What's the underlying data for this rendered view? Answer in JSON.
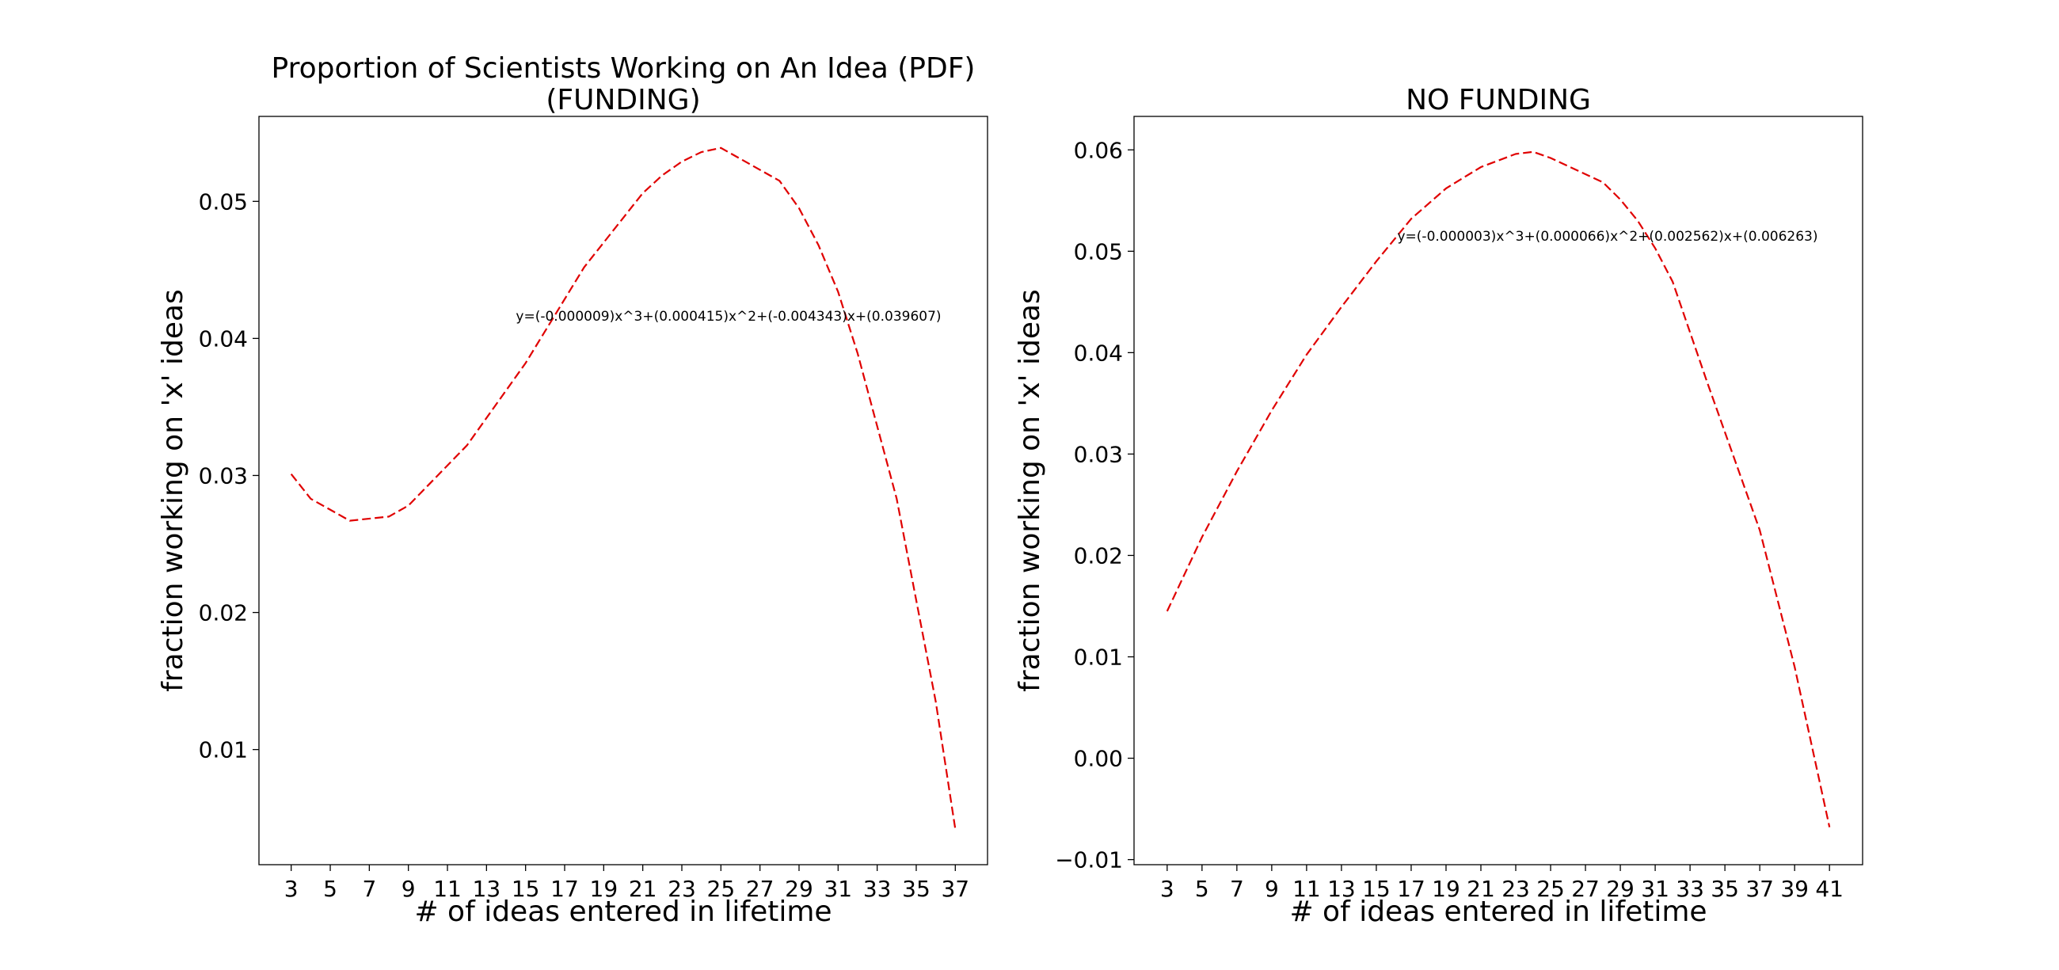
{
  "chart_data": [
    {
      "type": "line",
      "title": "Proportion of Scientists Working on An Idea (PDF)\n(FUNDING)",
      "xlabel": "# of ideas entered in lifetime",
      "ylabel": "fraction working on 'x' ideas",
      "annotation": "y=(-0.000009)x^3+(0.000415)x^2+(-0.004343)x+(0.039607)",
      "color": "#e00000",
      "xlim": [
        1.35,
        38.65
      ],
      "ylim": [
        0.0016,
        0.0562
      ],
      "xticks": [
        3,
        5,
        7,
        9,
        11,
        13,
        15,
        17,
        19,
        21,
        23,
        25,
        27,
        29,
        31,
        33,
        35,
        37
      ],
      "yticks": [
        0.01,
        0.02,
        0.03,
        0.04,
        0.05
      ],
      "ytick_labels": [
        "0.01",
        "0.02",
        "0.03",
        "0.04",
        "0.05"
      ],
      "grid": false,
      "x": [
        3,
        4,
        6,
        8,
        9,
        12,
        15,
        18,
        21,
        22,
        23,
        24,
        25,
        28,
        29,
        30,
        31,
        32,
        34,
        36,
        37
      ],
      "y": [
        0.0301,
        0.0283,
        0.0267,
        0.027,
        0.0278,
        0.0322,
        0.0382,
        0.0452,
        0.0506,
        0.0519,
        0.0529,
        0.0536,
        0.0539,
        0.0515,
        0.0495,
        0.0468,
        0.0434,
        0.0389,
        0.0283,
        0.0135,
        0.0042
      ]
    },
    {
      "type": "line",
      "title": "NO FUNDING",
      "xlabel": "# of ideas entered in lifetime",
      "ylabel": "fraction working on 'x' ideas",
      "annotation": "y=(-0.000003)x^3+(0.000066)x^2+(0.002562)x+(0.006263)",
      "color": "#e00000",
      "xlim": [
        1.1,
        42.9
      ],
      "ylim": [
        -0.0105,
        0.0633
      ],
      "xticks": [
        3,
        5,
        7,
        9,
        11,
        13,
        15,
        17,
        19,
        21,
        23,
        25,
        27,
        29,
        31,
        33,
        35,
        37,
        39,
        41
      ],
      "yticks": [
        -0.01,
        0.0,
        0.01,
        0.02,
        0.03,
        0.04,
        0.05,
        0.06
      ],
      "ytick_labels": [
        "−0.01",
        "0.00",
        "0.01",
        "0.02",
        "0.03",
        "0.04",
        "0.05",
        "0.06"
      ],
      "grid": false,
      "x": [
        3,
        5,
        7,
        9,
        11,
        13,
        15,
        17,
        19,
        21,
        23,
        24,
        25,
        28,
        29,
        30,
        31,
        32,
        34,
        37,
        39,
        41
      ],
      "y": [
        0.0145,
        0.0218,
        0.0283,
        0.0343,
        0.0398,
        0.0445,
        0.049,
        0.0532,
        0.0562,
        0.0583,
        0.0596,
        0.0598,
        0.0592,
        0.0568,
        0.0551,
        0.053,
        0.0503,
        0.047,
        0.037,
        0.0225,
        0.009,
        -0.0068
      ]
    }
  ]
}
